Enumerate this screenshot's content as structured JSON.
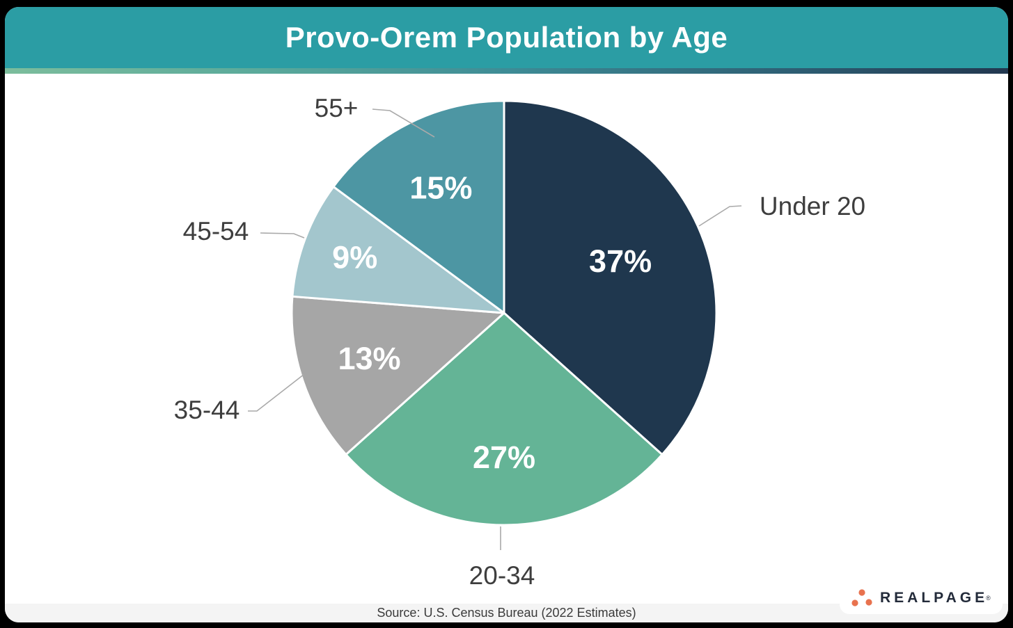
{
  "header": {
    "title": "Provo-Orem Population by Age"
  },
  "chart_data": {
    "type": "pie",
    "title": "Provo-Orem Population by Age",
    "categories": [
      "Under 20",
      "20-34",
      "35-44",
      "45-54",
      "55+"
    ],
    "values": [
      37,
      27,
      13,
      9,
      15
    ],
    "unit": "%",
    "colors": [
      "#1F374E",
      "#64B496",
      "#A6A6A6",
      "#A3C6CD",
      "#4D96A3"
    ],
    "start_angle_deg": 0,
    "direction": "clockwise",
    "legend_position": "outside-callout-labels",
    "slice_border_color": "#FFFFFF"
  },
  "footer": {
    "source": "Source: U.S. Census Bureau (2022 Estimates)"
  },
  "branding": {
    "logo_text": "REALPAGE",
    "trademark": "®",
    "logo_dot_color": "#E8724E",
    "logo_text_color": "#232B3A"
  },
  "theme": {
    "header_bg": "#2B9DA4",
    "header_text": "#FFFFFF",
    "accent_gradient": [
      "#7CBD9C",
      "#3E8C96",
      "#22374F"
    ],
    "label_color": "#3E3E3E",
    "leader_line_color": "#A9A9A9",
    "source_bar_bg": "#F4F4F4",
    "frame_bg": "#000000"
  }
}
